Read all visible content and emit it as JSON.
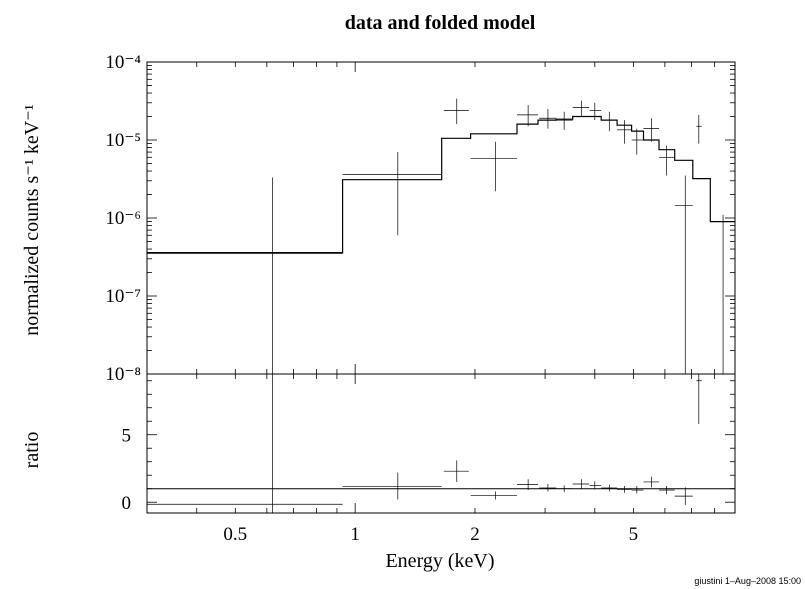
{
  "chart_data": [
    {
      "type": "line",
      "title": "data and folded model",
      "ylabel": "normalized counts s⁻¹ keV⁻¹",
      "xscale": "log",
      "yscale": "log",
      "xlim": [
        0.3,
        9.0
      ],
      "ylim": [
        1e-08,
        0.0001
      ],
      "ytick_labels": [
        "10⁻⁸",
        "10⁻⁷",
        "10⁻⁶",
        "10⁻⁵",
        "10⁻⁴"
      ],
      "series": [
        {
          "kind": "data",
          "points": [
            {
              "x": 0.62,
              "xlo": 0.3,
              "xhi": 0.93,
              "y": 3.5e-07,
              "ylo": 1e-08,
              "yhi": 3.3e-06
            },
            {
              "x": 1.28,
              "xlo": 0.93,
              "xhi": 1.65,
              "y": 3.6e-06,
              "ylo": 6e-07,
              "yhi": 7e-06
            },
            {
              "x": 1.8,
              "xlo": 1.67,
              "xhi": 1.93,
              "y": 2.4e-05,
              "ylo": 1.6e-05,
              "yhi": 3.4e-05
            },
            {
              "x": 2.25,
              "xlo": 1.95,
              "xhi": 2.55,
              "y": 5.8e-06,
              "ylo": 2.2e-06,
              "yhi": 9.5e-06
            },
            {
              "x": 2.72,
              "xlo": 2.55,
              "xhi": 2.88,
              "y": 2.1e-05,
              "ylo": 1.5e-05,
              "yhi": 2.8e-05
            },
            {
              "x": 3.05,
              "xlo": 2.9,
              "xhi": 3.2,
              "y": 1.9e-05,
              "ylo": 1.4e-05,
              "yhi": 2.5e-05
            },
            {
              "x": 3.35,
              "xlo": 3.2,
              "xhi": 3.52,
              "y": 1.8e-05,
              "ylo": 1.35e-05,
              "yhi": 2.3e-05
            },
            {
              "x": 3.7,
              "xlo": 3.52,
              "xhi": 3.87,
              "y": 2.6e-05,
              "ylo": 2e-05,
              "yhi": 3.2e-05
            },
            {
              "x": 4.0,
              "xlo": 3.88,
              "xhi": 4.15,
              "y": 2.4e-05,
              "ylo": 1.8e-05,
              "yhi": 3e-05
            },
            {
              "x": 4.35,
              "xlo": 4.15,
              "xhi": 4.55,
              "y": 1.8e-05,
              "ylo": 1.3e-05,
              "yhi": 2.3e-05
            },
            {
              "x": 4.75,
              "xlo": 4.55,
              "xhi": 4.95,
              "y": 1.35e-05,
              "ylo": 9e-06,
              "yhi": 1.8e-05
            },
            {
              "x": 5.1,
              "xlo": 4.95,
              "xhi": 5.3,
              "y": 1e-05,
              "ylo": 6.5e-06,
              "yhi": 1.4e-05
            },
            {
              "x": 5.55,
              "xlo": 5.3,
              "xhi": 5.8,
              "y": 1.4e-05,
              "ylo": 9.5e-06,
              "yhi": 1.9e-05
            },
            {
              "x": 6.05,
              "xlo": 5.8,
              "xhi": 6.35,
              "y": 6e-06,
              "ylo": 3.5e-06,
              "yhi": 8.5e-06
            },
            {
              "x": 6.75,
              "xlo": 6.35,
              "xhi": 7.05,
              "y": 1.45e-06,
              "ylo": 1e-08,
              "yhi": 3.5e-06
            },
            {
              "x": 7.3,
              "xlo": 7.2,
              "xhi": 7.42,
              "y": 1.5e-05,
              "ylo": 9e-06,
              "yhi": 2.1e-05
            },
            {
              "x": 8.4,
              "xlo": 7.9,
              "xhi": 9.0,
              "y": 1e-08,
              "ylo": 1e-08,
              "yhi": 1.1e-06
            }
          ]
        },
        {
          "kind": "model",
          "edges": [
            0.3,
            0.93,
            1.65,
            1.95,
            2.55,
            2.88,
            3.2,
            3.52,
            3.87,
            4.15,
            4.55,
            4.95,
            5.3,
            5.8,
            6.35,
            7.05,
            7.8,
            9.0
          ],
          "values": [
            3.6e-07,
            3.1e-06,
            1.05e-05,
            1.2e-05,
            1.6e-05,
            1.8e-05,
            1.85e-05,
            2e-05,
            2e-05,
            1.8e-05,
            1.55e-05,
            1.3e-05,
            1e-05,
            7.5e-06,
            5.5e-06,
            3.2e-06,
            9e-07
          ]
        }
      ]
    },
    {
      "type": "line",
      "ylabel": "ratio",
      "xlabel": "Energy (keV)",
      "xscale": "log",
      "xlim": [
        0.3,
        9.0
      ],
      "ylim": [
        -0.8,
        9.5
      ],
      "x_tick_labels": [
        {
          "value": 0.5,
          "label": "0.5"
        },
        {
          "value": 1,
          "label": "1"
        },
        {
          "value": 2,
          "label": "2"
        },
        {
          "value": 5,
          "label": "5"
        }
      ],
      "y_tick_labels": [
        {
          "value": 0,
          "label": "0"
        },
        {
          "value": 5,
          "label": "5"
        }
      ],
      "reference_line": 1,
      "series": [
        {
          "kind": "ratio",
          "points": [
            {
              "x": 0.62,
              "xlo": 0.3,
              "xhi": 0.93,
              "y": -0.15,
              "ylo": -0.8,
              "yhi": 9.5
            },
            {
              "x": 1.28,
              "xlo": 0.93,
              "xhi": 1.65,
              "y": 1.15,
              "ylo": 0.2,
              "yhi": 2.2
            },
            {
              "x": 1.8,
              "xlo": 1.67,
              "xhi": 1.93,
              "y": 2.3,
              "ylo": 1.5,
              "yhi": 3.1
            },
            {
              "x": 2.25,
              "xlo": 1.95,
              "xhi": 2.55,
              "y": 0.5,
              "ylo": 0.2,
              "yhi": 0.8
            },
            {
              "x": 2.72,
              "xlo": 2.55,
              "xhi": 2.88,
              "y": 1.3,
              "ylo": 0.9,
              "yhi": 1.7
            },
            {
              "x": 3.05,
              "xlo": 2.9,
              "xhi": 3.2,
              "y": 1.05,
              "ylo": 0.8,
              "yhi": 1.35
            },
            {
              "x": 3.35,
              "xlo": 3.2,
              "xhi": 3.52,
              "y": 1.0,
              "ylo": 0.75,
              "yhi": 1.25
            },
            {
              "x": 3.7,
              "xlo": 3.52,
              "xhi": 3.87,
              "y": 1.35,
              "ylo": 1.0,
              "yhi": 1.7
            },
            {
              "x": 4.0,
              "xlo": 3.88,
              "xhi": 4.15,
              "y": 1.25,
              "ylo": 0.95,
              "yhi": 1.55
            },
            {
              "x": 4.35,
              "xlo": 4.15,
              "xhi": 4.55,
              "y": 1.05,
              "ylo": 0.8,
              "yhi": 1.3
            },
            {
              "x": 4.75,
              "xlo": 4.55,
              "xhi": 4.95,
              "y": 0.95,
              "ylo": 0.7,
              "yhi": 1.2
            },
            {
              "x": 5.1,
              "xlo": 4.95,
              "xhi": 5.3,
              "y": 0.9,
              "ylo": 0.65,
              "yhi": 1.2
            },
            {
              "x": 5.55,
              "xlo": 5.3,
              "xhi": 5.8,
              "y": 1.5,
              "ylo": 1.1,
              "yhi": 1.9
            },
            {
              "x": 6.05,
              "xlo": 5.8,
              "xhi": 6.35,
              "y": 0.9,
              "ylo": 0.6,
              "yhi": 1.2
            },
            {
              "x": 6.75,
              "xlo": 6.35,
              "xhi": 7.05,
              "y": 0.45,
              "ylo": -0.2,
              "yhi": 1.1
            },
            {
              "x": 7.3,
              "xlo": 7.2,
              "xhi": 7.42,
              "y": 9.0,
              "ylo": 5.8,
              "yhi": 9.5
            },
            {
              "x": 8.4,
              "xlo": 7.9,
              "xhi": 9.0,
              "y": -0.8,
              "ylo": -0.8,
              "yhi": -0.8
            }
          ]
        }
      ]
    }
  ],
  "footer": {
    "stamp": "giustini  1–Aug–2008 15:00"
  }
}
